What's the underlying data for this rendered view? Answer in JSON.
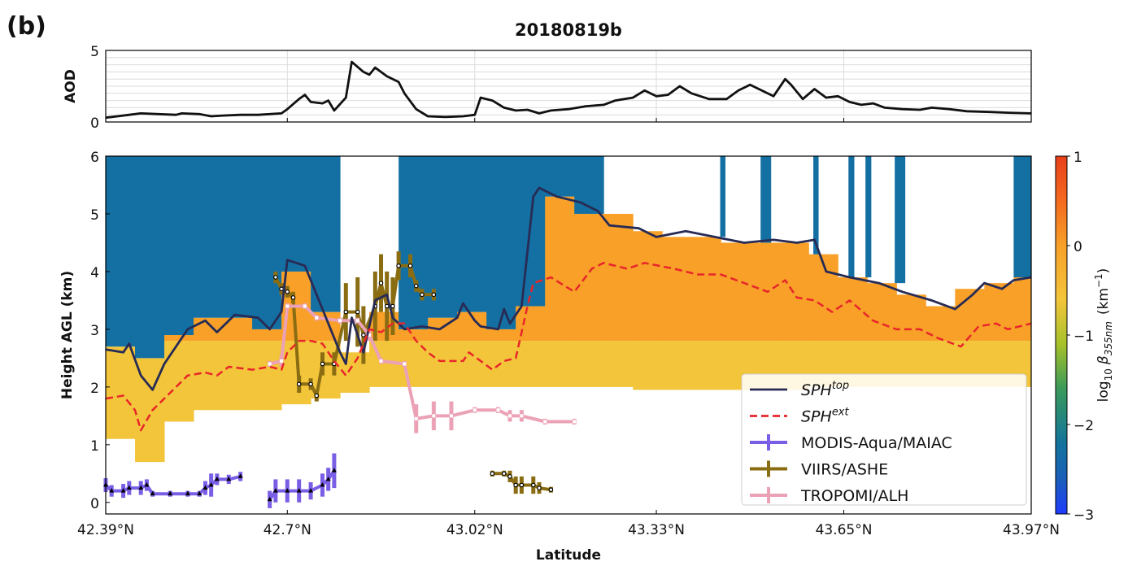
{
  "panel_label": "(b)",
  "chart_data": [
    {
      "type": "line",
      "title": "20180819b",
      "ylabel": "AOD",
      "x": [
        42.39,
        42.41,
        42.43,
        42.45,
        42.48,
        42.51,
        42.52,
        42.55,
        42.57,
        42.59,
        42.62,
        42.65,
        42.67,
        42.69,
        42.7,
        42.72,
        42.73,
        42.74,
        42.76,
        42.77,
        42.78,
        42.8,
        42.81,
        42.83,
        42.84,
        42.85,
        42.87,
        42.89,
        42.9,
        42.92,
        42.94,
        42.97,
        43.0,
        43.02,
        43.03,
        43.05,
        43.07,
        43.09,
        43.11,
        43.13,
        43.15,
        43.18,
        43.21,
        43.24,
        43.26,
        43.29,
        43.31,
        43.33,
        43.35,
        43.37,
        43.39,
        43.42,
        43.45,
        43.47,
        43.49,
        43.51,
        43.53,
        43.55,
        43.56,
        43.58,
        43.6,
        43.62,
        43.64,
        43.66,
        43.68,
        43.7,
        43.72,
        43.75,
        43.78,
        43.8,
        43.83,
        43.86,
        43.9,
        43.93,
        43.97
      ],
      "values": [
        0.3,
        0.4,
        0.5,
        0.6,
        0.55,
        0.5,
        0.6,
        0.55,
        0.4,
        0.45,
        0.5,
        0.5,
        0.55,
        0.6,
        0.9,
        1.6,
        1.9,
        1.4,
        1.3,
        1.5,
        0.8,
        1.7,
        4.2,
        3.5,
        3.3,
        3.8,
        3.2,
        2.8,
        2.0,
        0.9,
        0.4,
        0.35,
        0.4,
        0.5,
        1.7,
        1.5,
        1.0,
        0.8,
        0.85,
        0.6,
        0.8,
        0.9,
        1.1,
        1.2,
        1.5,
        1.7,
        2.2,
        1.8,
        1.9,
        2.5,
        2.0,
        1.6,
        1.6,
        2.2,
        2.6,
        2.2,
        1.8,
        3.0,
        2.6,
        1.6,
        2.3,
        1.7,
        1.8,
        1.4,
        1.2,
        1.3,
        1.0,
        0.9,
        0.85,
        1.0,
        0.9,
        0.75,
        0.7,
        0.65,
        0.6
      ],
      "color": "#111111",
      "xlim": [
        42.39,
        43.97
      ],
      "xticks": [
        42.39,
        42.7,
        43.02,
        43.33,
        43.65,
        43.97
      ],
      "ylim": [
        0,
        5
      ],
      "yticks": [
        0,
        5
      ],
      "minor_yticks": [
        0.5,
        1,
        1.5,
        2,
        2.5,
        3,
        3.5,
        4,
        4.5
      ],
      "grid": true
    },
    {
      "type": "curtain",
      "xlabel": "Latitude",
      "ylabel": "Height AGL (km)",
      "xlim": [
        42.39,
        43.97
      ],
      "xticks": [
        {
          "value": 42.39,
          "label": "42.39°N"
        },
        {
          "value": 42.7,
          "label": "42.7°N"
        },
        {
          "value": 43.02,
          "label": "43.02°N"
        },
        {
          "value": 43.33,
          "label": "43.33°N"
        },
        {
          "value": 43.65,
          "label": "43.65°N"
        },
        {
          "value": 43.97,
          "label": "43.97°N"
        }
      ],
      "ylim": [
        -0.2,
        6
      ],
      "yticks": [
        0,
        1,
        2,
        3,
        4,
        5,
        6
      ],
      "curtain": {
        "lat_edges": [
          42.39,
          42.44,
          42.49,
          42.54,
          42.59,
          42.64,
          42.69,
          42.74,
          42.79,
          42.84,
          42.89,
          42.94,
          42.99,
          43.04,
          43.09,
          43.14,
          43.19,
          43.24,
          43.29,
          43.34,
          43.39,
          43.44,
          43.49,
          43.54,
          43.59,
          43.64,
          43.69,
          43.74,
          43.79,
          43.84,
          43.89,
          43.94,
          43.97
        ],
        "base": [
          1.1,
          0.7,
          1.4,
          1.6,
          1.6,
          1.6,
          1.7,
          1.8,
          1.9,
          2.0,
          2.0,
          2.0,
          2.0,
          2.0,
          2.0,
          2.0,
          2.0,
          2.0,
          1.95,
          1.95,
          1.95,
          1.95,
          1.95,
          1.95,
          2.0,
          2.0,
          2.0,
          2.0,
          2.0,
          2.0,
          2.0,
          2.0
        ],
        "top": [
          2.7,
          2.5,
          2.9,
          3.2,
          3.2,
          3.0,
          4.0,
          3.3,
          2.6,
          3.3,
          3.0,
          3.2,
          3.3,
          3.0,
          3.4,
          5.3,
          5.0,
          5.0,
          4.7,
          4.6,
          4.6,
          4.5,
          4.5,
          4.5,
          4.3,
          3.9,
          3.8,
          3.6,
          3.4,
          3.7,
          3.8,
          3.9
        ],
        "background_top": [
          6,
          6,
          6,
          6,
          6,
          6,
          6,
          6,
          null,
          null,
          6,
          6,
          6,
          6,
          6,
          6,
          6,
          null,
          null,
          null,
          null,
          null,
          null,
          null,
          null,
          null,
          null,
          null,
          null,
          null,
          null,
          6
        ],
        "lower_layer_top": 2.8,
        "lower_value": -0.6,
        "upper_value": 0.0,
        "background_value": -2.3,
        "stripes_start": [
          43.439,
          43.508,
          43.598,
          43.658,
          43.687,
          43.737
        ],
        "stripes_end": [
          43.448,
          43.526,
          43.607,
          43.668,
          43.697,
          43.755
        ]
      },
      "lines": [
        {
          "name": "SPH",
          "name_sup": "top",
          "color": "#272b55",
          "dashed": false,
          "x": [
            42.39,
            42.42,
            42.43,
            42.45,
            42.47,
            42.49,
            42.51,
            42.53,
            42.56,
            42.58,
            42.61,
            42.65,
            42.67,
            42.69,
            42.7,
            42.73,
            42.75,
            42.77,
            42.79,
            42.8,
            42.81,
            42.83,
            42.85,
            42.87,
            42.88,
            42.9,
            42.93,
            42.96,
            42.99,
            43.0,
            43.02,
            43.03,
            43.06,
            43.07,
            43.08,
            43.1,
            43.12,
            43.13,
            43.16,
            43.2,
            43.23,
            43.25,
            43.3,
            43.33,
            43.38,
            43.43,
            43.48,
            43.53,
            43.57,
            43.6,
            43.62,
            43.66,
            43.71,
            43.75,
            43.8,
            43.84,
            43.87,
            43.89,
            43.92,
            43.94,
            43.97
          ],
          "values": [
            2.65,
            2.6,
            2.75,
            2.2,
            1.95,
            2.4,
            2.7,
            3.0,
            3.15,
            2.95,
            3.25,
            3.2,
            3.0,
            3.3,
            4.2,
            4.1,
            3.6,
            3.1,
            2.6,
            2.4,
            3.2,
            2.6,
            3.5,
            3.6,
            3.2,
            3.0,
            3.05,
            3.0,
            3.2,
            3.45,
            3.15,
            3.05,
            3.0,
            3.35,
            3.1,
            3.4,
            5.3,
            5.45,
            5.3,
            5.2,
            5.05,
            4.8,
            4.75,
            4.6,
            4.7,
            4.6,
            4.5,
            4.55,
            4.5,
            4.55,
            4.0,
            3.9,
            3.8,
            3.65,
            3.5,
            3.35,
            3.6,
            3.8,
            3.7,
            3.85,
            3.9
          ]
        },
        {
          "name": "SPH",
          "name_sup": "ext",
          "color": "#e8262a",
          "dashed": true,
          "x": [
            42.39,
            42.42,
            42.44,
            42.45,
            42.47,
            42.5,
            42.53,
            42.56,
            42.58,
            42.6,
            42.64,
            42.67,
            42.69,
            42.7,
            42.72,
            42.74,
            42.76,
            42.78,
            42.8,
            42.82,
            42.84,
            42.86,
            42.88,
            42.9,
            42.92,
            42.94,
            42.96,
            43.0,
            43.01,
            43.03,
            43.05,
            43.07,
            43.09,
            43.11,
            43.12,
            43.15,
            43.19,
            43.22,
            43.24,
            43.28,
            43.31,
            43.36,
            43.4,
            43.44,
            43.48,
            43.52,
            43.55,
            43.57,
            43.6,
            43.63,
            43.66,
            43.7,
            43.74,
            43.78,
            43.81,
            43.85,
            43.88,
            43.91,
            43.93,
            43.97
          ],
          "values": [
            1.8,
            1.85,
            1.6,
            1.25,
            1.6,
            1.9,
            2.2,
            2.25,
            2.2,
            2.35,
            2.3,
            2.35,
            2.3,
            2.6,
            2.8,
            2.8,
            2.75,
            2.45,
            2.2,
            2.5,
            3.0,
            2.95,
            3.1,
            3.1,
            2.8,
            2.6,
            2.45,
            2.45,
            2.6,
            2.45,
            2.3,
            2.45,
            2.5,
            3.4,
            3.8,
            3.9,
            3.65,
            4.05,
            4.15,
            4.05,
            4.15,
            4.05,
            3.95,
            3.95,
            3.8,
            3.65,
            3.85,
            3.55,
            3.5,
            3.3,
            3.5,
            3.15,
            3.0,
            3.0,
            2.85,
            2.7,
            3.05,
            3.1,
            3.0,
            3.1
          ]
        }
      ],
      "retrievals": [
        {
          "name": "MODIS-Aqua/MAIAC",
          "color": "#7a5ee6",
          "marker": "triangle",
          "x": [
            42.39,
            42.4,
            42.42,
            42.43,
            42.45,
            42.46,
            42.47,
            42.5,
            42.53,
            42.55,
            42.56,
            42.57,
            42.58,
            42.6,
            42.62,
            null,
            42.67,
            42.68,
            42.7,
            42.72,
            42.74,
            42.76,
            42.77,
            42.78
          ],
          "values": [
            0.3,
            0.2,
            0.2,
            0.25,
            0.25,
            0.3,
            0.15,
            0.15,
            0.15,
            0.15,
            0.25,
            0.3,
            0.4,
            0.4,
            0.45,
            null,
            0.05,
            0.2,
            0.2,
            0.2,
            0.2,
            0.3,
            0.4,
            0.55
          ],
          "errors": [
            0.12,
            0.1,
            0.12,
            0.12,
            0.12,
            0.1,
            0.05,
            0.05,
            0.05,
            0.05,
            0.12,
            0.2,
            0.1,
            0.08,
            0.08,
            null,
            0.15,
            0.2,
            0.2,
            0.2,
            0.15,
            0.2,
            0.2,
            0.3
          ]
        },
        {
          "name": "VIIRS/ASHE",
          "color": "#8a6d12",
          "marker": "dot",
          "x": [
            42.68,
            42.69,
            42.7,
            42.71,
            42.72,
            42.74,
            42.75,
            42.76,
            42.78,
            42.8,
            42.82,
            42.83,
            42.85,
            42.86,
            42.87,
            42.88,
            42.89,
            42.91,
            42.92,
            42.93,
            42.95,
            null,
            43.05,
            43.07,
            43.08,
            43.09,
            43.1,
            43.12,
            43.13,
            43.15
          ],
          "values": [
            3.9,
            3.7,
            3.65,
            3.55,
            2.05,
            2.05,
            1.85,
            2.4,
            2.4,
            3.3,
            3.3,
            2.9,
            3.4,
            3.8,
            3.4,
            3.4,
            4.1,
            4.1,
            3.75,
            3.6,
            3.6,
            null,
            0.5,
            0.5,
            0.45,
            0.3,
            0.3,
            0.3,
            0.25,
            0.22
          ],
          "errors": [
            0.1,
            0.1,
            0.1,
            0.1,
            0.15,
            0.1,
            0.1,
            0.2,
            0.2,
            0.5,
            0.6,
            0.5,
            0.6,
            0.5,
            0.6,
            0.5,
            0.25,
            0.2,
            0.1,
            0.1,
            0.1,
            null,
            0.05,
            0.05,
            0.1,
            0.15,
            0.15,
            0.15,
            0.1,
            0.05
          ]
        },
        {
          "name": "TROPOMI/ALH",
          "color": "#eba1b6",
          "marker": "square",
          "x": [
            42.67,
            42.69,
            42.7,
            42.73,
            42.75,
            42.79,
            42.82,
            42.84,
            42.86,
            42.9,
            42.92,
            42.95,
            42.98,
            43.02,
            43.06,
            43.08,
            43.1,
            43.14,
            43.19
          ],
          "values": [
            2.4,
            2.45,
            3.4,
            3.4,
            3.2,
            3.15,
            3.15,
            2.9,
            2.45,
            2.4,
            1.45,
            1.5,
            1.5,
            1.6,
            1.6,
            1.5,
            1.5,
            1.4,
            1.4
          ],
          "errors": [
            0.05,
            0.1,
            0.05,
            0.05,
            0.05,
            0.05,
            0.05,
            0.1,
            0.05,
            0.05,
            0.25,
            0.25,
            0.25,
            0.05,
            0.05,
            0.1,
            0.1,
            0.05,
            0.05
          ]
        }
      ],
      "legend": "lower right",
      "colorbar": {
        "lim": [
          -3,
          1
        ],
        "ticks": [
          1,
          0,
          {
            "value": -1,
            "label": "−1"
          },
          {
            "value": -2,
            "label": "−2"
          },
          {
            "value": -3,
            "label": "−3"
          }
        ],
        "label_parts": [
          "log",
          "10",
          "β",
          "355nm",
          "(km",
          "−1",
          ")"
        ],
        "colormap": {
          "values": [
            -3,
            -2.6,
            -2.2,
            -1.6,
            -1.1,
            -0.6,
            0,
            0.5,
            1
          ],
          "colors": [
            "#1f3cff",
            "#1a5fb8",
            "#12759b",
            "#3a9a5a",
            "#a8c22a",
            "#f3c53a",
            "#f8a028",
            "#f46a1e",
            "#e8401a"
          ]
        }
      }
    }
  ]
}
